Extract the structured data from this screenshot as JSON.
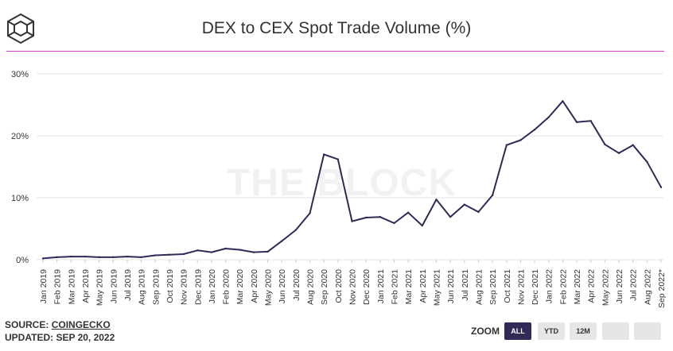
{
  "header": {
    "title": "DEX to CEX Spot Trade Volume (%)",
    "logo_icon": "the-block-cube-logo"
  },
  "watermark": "THE BLOCK",
  "footer": {
    "source_label": "SOURCE:",
    "source_name": "COINGECKO",
    "updated": "UPDATED: SEP 20, 2022"
  },
  "zoom": {
    "label": "ZOOM",
    "buttons": [
      "ALL",
      "YTD",
      "12M",
      "",
      ""
    ],
    "active": "ALL"
  },
  "colors": {
    "line": "#2f2a56",
    "accent_rule": "#c940c9",
    "grid": "#e6e6e6",
    "active_button": "#2f2a56"
  },
  "chart_data": {
    "type": "line",
    "title": "DEX to CEX Spot Trade Volume (%)",
    "xlabel": "",
    "ylabel": "",
    "ylim": [
      0,
      30
    ],
    "yticks": [
      0,
      10,
      20,
      30
    ],
    "ytick_labels": [
      "0%",
      "10%",
      "20%",
      "30%"
    ],
    "grid": true,
    "legend": "none",
    "categories": [
      "Jan 2019",
      "Feb 2019",
      "Mar 2019",
      "Apr 2019",
      "May 2019",
      "Jun 2019",
      "Jul 2019",
      "Aug 2019",
      "Sep 2019",
      "Oct 2019",
      "Nov 2019",
      "Dec 2019",
      "Jan 2020",
      "Feb 2020",
      "Mar 2020",
      "Apr 2020",
      "May 2020",
      "Jun 2020",
      "Jul 2020",
      "Aug 2020",
      "Sep 2020",
      "Oct 2020",
      "Nov 2020",
      "Dec 2020",
      "Jan 2021",
      "Feb 2021",
      "Mar 2021",
      "Apr 2021",
      "May 2021",
      "Jun 2021",
      "Jul 2021",
      "Aug 2021",
      "Sep 2021",
      "Oct 2021",
      "Nov 2021",
      "Dec 2021",
      "Jan 2022",
      "Feb 2022",
      "Mar 2022",
      "Apr 2022",
      "May 2022",
      "Jun 2022",
      "Jul 2022",
      "Aug 2022",
      "Sep 2022*"
    ],
    "series": [
      {
        "values": [
          0.2,
          0.4,
          0.5,
          0.5,
          0.4,
          0.4,
          0.5,
          0.4,
          0.7,
          0.8,
          0.9,
          1.5,
          1.2,
          1.8,
          1.6,
          1.2,
          1.3,
          3.0,
          4.8,
          7.5,
          17.0,
          16.2,
          6.2,
          6.8,
          6.9,
          5.9,
          7.6,
          5.5,
          9.7,
          6.9,
          8.9,
          7.7,
          10.4,
          18.5,
          19.3,
          21.0,
          23.0,
          25.6,
          22.2,
          22.4,
          18.6,
          17.2,
          18.5,
          15.8,
          11.7
        ]
      }
    ]
  }
}
